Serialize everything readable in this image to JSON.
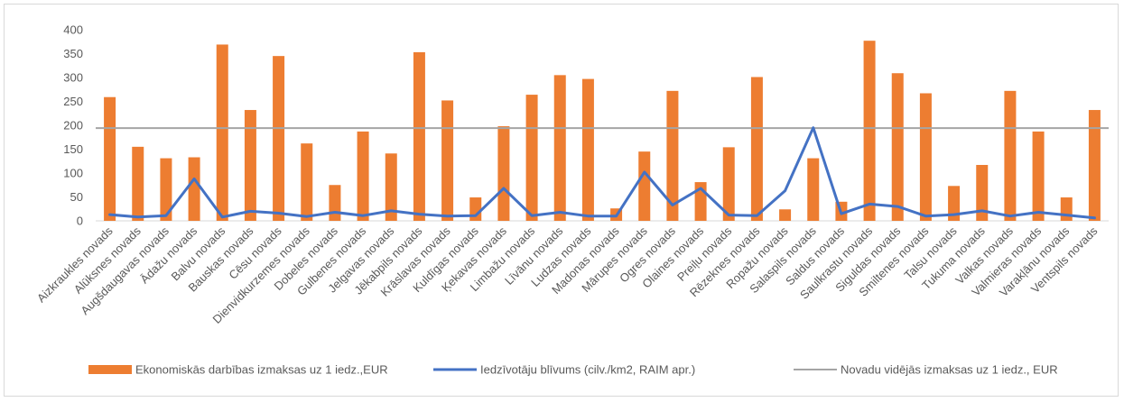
{
  "chart_data": {
    "type": "bar",
    "categories": [
      "Aizkraukles novads",
      "Alūksnes novads",
      "Augšdaugavas novads",
      "Ādažu novads",
      "Balvu novads",
      "Bauskas novads",
      "Cēsu novads",
      "Dienvidkurzemes novads",
      "Dobeles novads",
      "Gulbenes novads",
      "Jelgavas novads",
      "Jēkabpils novads",
      "Krāslavas novads",
      "Kuldīgas novads",
      "Ķekavas novads",
      "Limbažu novads",
      "Līvānu novads",
      "Ludzas novads",
      "Madonas novads",
      "Mārupes novads",
      "Ogres novads",
      "Olaines novads",
      "Preiļu novads",
      "Rēzeknes novads",
      "Ropažu novads",
      "Salaspils novads",
      "Saldus novads",
      "Saulkrastu novads",
      "Siguldas novads",
      "Smiltenes novads",
      "Talsu novads",
      "Tukuma novads",
      "Valkas novads",
      "Valmieras novads",
      "Varakļānu novads",
      "Ventspils novads"
    ],
    "series": [
      {
        "name": "Ekonomiskās darbības izmaksas uz 1 iedz.,EUR",
        "type": "bar",
        "color": "#ed7d31",
        "values": [
          259,
          155,
          131,
          133,
          369,
          232,
          345,
          162,
          75,
          187,
          141,
          353,
          252,
          49,
          198,
          264,
          305,
          297,
          26,
          145,
          272,
          81,
          154,
          301,
          24,
          131,
          40,
          377,
          309,
          267,
          73,
          117,
          272,
          187,
          49,
          232
        ]
      },
      {
        "name": "Iedzīvotāju blīvums (cilv./km2, RAIM apr.)",
        "type": "line",
        "color": "#4472c4",
        "values": [
          13,
          8,
          11,
          88,
          8,
          20,
          16,
          9,
          18,
          11,
          21,
          14,
          10,
          11,
          68,
          11,
          18,
          10,
          10,
          102,
          33,
          68,
          12,
          11,
          63,
          195,
          15,
          35,
          30,
          10,
          13,
          21,
          10,
          18,
          12,
          6
        ]
      },
      {
        "name": "Novadu vidējās izmaksas uz 1 iedz., EUR",
        "type": "line",
        "color": "#a5a5a5",
        "values": [
          194,
          194,
          194,
          194,
          194,
          194,
          194,
          194,
          194,
          194,
          194,
          194,
          194,
          194,
          194,
          194,
          194,
          194,
          194,
          194,
          194,
          194,
          194,
          194,
          194,
          194,
          194,
          194,
          194,
          194,
          194,
          194,
          194,
          194,
          194,
          194
        ]
      }
    ],
    "yticks": [
      0,
      50,
      100,
      150,
      200,
      250,
      300,
      350,
      400
    ],
    "ylim": [
      0,
      400
    ],
    "grid": false,
    "legend": "bottom"
  }
}
